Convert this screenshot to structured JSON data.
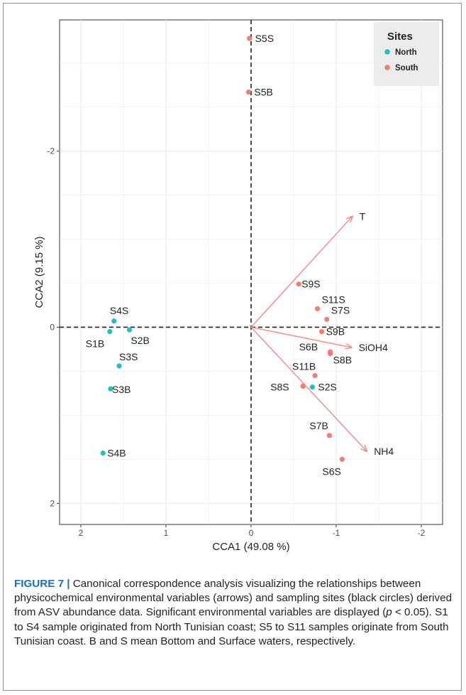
{
  "chart_data": {
    "type": "scatter",
    "xlabel": "CCA1 (49.08 %)",
    "ylabel": "CCA2 (9.15 %)",
    "xlim": [
      2.25,
      -2.25
    ],
    "ylim": [
      -3.49,
      2.24
    ],
    "x_ticks": [
      2,
      1,
      0,
      -1,
      -2
    ],
    "y_ticks": [
      -2,
      0,
      2
    ],
    "x_reversed": true,
    "y_reversed": true,
    "grid": true,
    "reference_lines": {
      "x": 0,
      "y": 0,
      "style": "dashed"
    },
    "legend": {
      "title": "Sites",
      "placement": "top-right"
    },
    "series": [
      {
        "name": "North",
        "color": "#1fbfc4",
        "points": [
          {
            "label": "S1B",
            "x": 1.66,
            "y": 0.05
          },
          {
            "label": "S2B",
            "x": 1.43,
            "y": 0.03
          },
          {
            "label": "S3S",
            "x": 1.55,
            "y": 0.44
          },
          {
            "label": "S3B",
            "x": 1.65,
            "y": 0.7
          },
          {
            "label": "S4S",
            "x": 1.61,
            "y": -0.07
          },
          {
            "label": "S4B",
            "x": 1.74,
            "y": 1.43
          },
          {
            "label": "S2S",
            "x": -0.72,
            "y": 0.68
          }
        ]
      },
      {
        "name": "South",
        "color": "#f47c72",
        "points": [
          {
            "label": "S5S",
            "x": 0.02,
            "y": -3.28
          },
          {
            "label": "S5B",
            "x": 0.03,
            "y": -2.67
          },
          {
            "label": "S6B",
            "x": -0.93,
            "y": 0.28
          },
          {
            "label": "S6S",
            "x": -1.07,
            "y": 1.5
          },
          {
            "label": "S7S",
            "x": -0.89,
            "y": -0.09
          },
          {
            "label": "S7B",
            "x": -0.92,
            "y": 1.23
          },
          {
            "label": "S8S",
            "x": -0.61,
            "y": 0.67
          },
          {
            "label": "S8B",
            "x": -0.93,
            "y": 0.3
          },
          {
            "label": "S9S",
            "x": -0.56,
            "y": -0.49
          },
          {
            "label": "S9B",
            "x": -0.83,
            "y": 0.05
          },
          {
            "label": "S11S",
            "x": -0.78,
            "y": -0.21
          },
          {
            "label": "S11B",
            "x": -0.75,
            "y": 0.55
          }
        ]
      }
    ],
    "arrows": [
      {
        "label": "T",
        "x": -1.19,
        "y": -1.26
      },
      {
        "label": "SiOH4",
        "x": -1.18,
        "y": 0.23
      },
      {
        "label": "NH4",
        "x": -1.36,
        "y": 1.41
      }
    ]
  },
  "caption": {
    "label": "FIGURE 7",
    "separator": "|",
    "text_1": "Canonical correspondence analysis visualizing the relationships between physicochemical environmental variables (arrows) and sampling sites (black circles) derived from ASV abundance data. Significant environmental variables are displayed (",
    "p_symbol": "p",
    "text_2": " < 0.05). S1 to S4 sample originated from North Tunisian coast; S5 to S11 samples originate from South Tunisian coast. B and S mean Bottom and Surface waters, respectively."
  }
}
